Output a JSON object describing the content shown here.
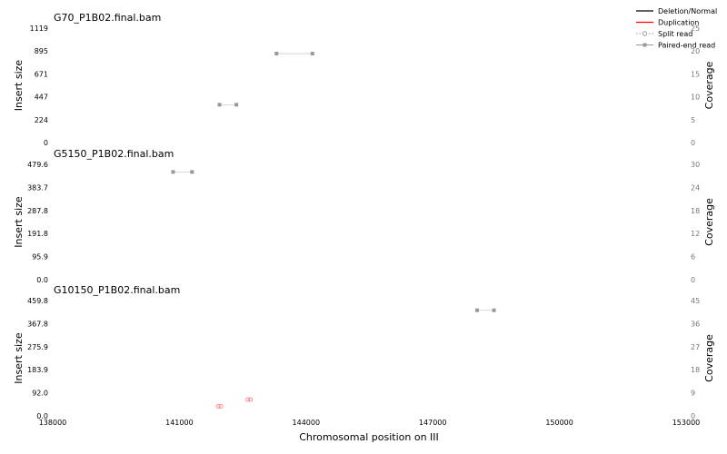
{
  "chart_data": {
    "type": "scatter",
    "xlabel": "Chromosomal position on III",
    "xlim": [
      138000,
      153000
    ],
    "xticks": [
      "138000",
      "141000",
      "144000",
      "147000",
      "150000",
      "153000"
    ],
    "xtick_values": [
      138000,
      141000,
      144000,
      147000,
      150000,
      153000
    ],
    "colors": {
      "deletion": "#000000",
      "duplication": "#ff0000",
      "paired": "#999999",
      "split": "#999999"
    },
    "legend": {
      "placement": "top-right",
      "entries": [
        {
          "label": "Deletion/Normal",
          "style": "line",
          "color": "#000000"
        },
        {
          "label": "Duplication",
          "style": "line",
          "color": "#ff0000"
        },
        {
          "label": "Split read",
          "style": "split",
          "color": "#999999"
        },
        {
          "label": "Paired-end read",
          "style": "paired",
          "color": "#999999"
        }
      ]
    },
    "panels": [
      {
        "title": "G70_P1B02.final.bam",
        "ylabel": "Insert size",
        "ylabel_right": "Coverage",
        "ylim": [
          0,
          1119
        ],
        "yticks": [
          "0",
          "224",
          "447",
          "671",
          "895",
          "1119"
        ],
        "ytick_values": [
          0,
          224,
          447,
          671,
          895,
          1119
        ],
        "coverage_lim": [
          0,
          25
        ],
        "coverage_ticks": [
          "0",
          "5",
          "10",
          "15",
          "20",
          "25"
        ],
        "coverage_values": [
          0,
          5,
          10,
          15,
          20,
          25
        ],
        "paired_reads": [
          {
            "x1": 143300,
            "x2": 144150,
            "y": 870
          },
          {
            "x1": 141950,
            "x2": 142350,
            "y": 370
          }
        ],
        "dup_points": []
      },
      {
        "title": "G5150_P1B02.final.bam",
        "ylabel": "Insert size",
        "ylabel_right": "Coverage",
        "ylim": [
          0,
          479.6
        ],
        "yticks": [
          "0.0",
          "95.9",
          "191.8",
          "287.8",
          "383.7",
          "479.6"
        ],
        "ytick_values": [
          0,
          95.9,
          191.8,
          287.8,
          383.7,
          479.6
        ],
        "coverage_lim": [
          0,
          30
        ],
        "coverage_ticks": [
          "0",
          "6",
          "12",
          "18",
          "24",
          "30"
        ],
        "coverage_values": [
          0,
          6,
          12,
          18,
          24,
          30
        ],
        "paired_reads": [
          {
            "x1": 140850,
            "x2": 141300,
            "y": 448
          }
        ],
        "dup_points": []
      },
      {
        "title": "G10150_P1B02.final.bam",
        "ylabel": "Insert size",
        "ylabel_right": "Coverage",
        "ylim": [
          0,
          459.8
        ],
        "yticks": [
          "0.0",
          "92.0",
          "183.9",
          "275.9",
          "367.8",
          "459.8"
        ],
        "ytick_values": [
          0,
          92,
          183.9,
          275.9,
          367.8,
          459.8
        ],
        "coverage_lim": [
          0,
          45
        ],
        "coverage_ticks": [
          "0",
          "9",
          "18",
          "27",
          "36",
          "45"
        ],
        "coverage_values": [
          0,
          9,
          18,
          27,
          36,
          45
        ],
        "paired_reads": [
          {
            "x1": 148050,
            "x2": 148450,
            "y": 421
          }
        ],
        "dup_points": [
          {
            "x": 141950,
            "y": 38
          },
          {
            "x": 142650,
            "y": 65
          }
        ]
      }
    ]
  }
}
